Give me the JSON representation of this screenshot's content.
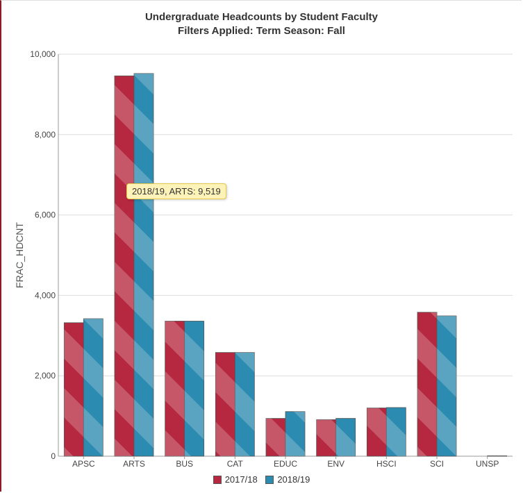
{
  "chart_data": {
    "type": "bar",
    "title": "Undergraduate Headcounts by Student Faculty",
    "subtitle": "Filters Applied: Term Season: Fall",
    "xlabel": "",
    "ylabel": "FRAC_HDCNT",
    "ylim": [
      0,
      10000
    ],
    "yticks": [
      "0",
      "2,000",
      "4,000",
      "6,000",
      "8,000",
      "10,000"
    ],
    "yticks_values": [
      0,
      2000,
      4000,
      6000,
      8000,
      10000
    ],
    "grid": true,
    "legend_position": "bottom",
    "categories": [
      "APSC",
      "ARTS",
      "BUS",
      "CAT",
      "EDUC",
      "ENV",
      "HSCI",
      "SCI",
      "UNSP"
    ],
    "series": [
      {
        "name": "2017/18",
        "color": "#b5283f",
        "values": [
          3320,
          9460,
          3360,
          2580,
          940,
          910,
          1200,
          3580,
          0
        ]
      },
      {
        "name": "2018/19",
        "color": "#2b8bb0",
        "values": [
          3420,
          9519,
          3360,
          2580,
          1110,
          940,
          1210,
          3490,
          10
        ]
      }
    ],
    "tooltip": {
      "text": "2018/19, ARTS: 9,519"
    }
  }
}
